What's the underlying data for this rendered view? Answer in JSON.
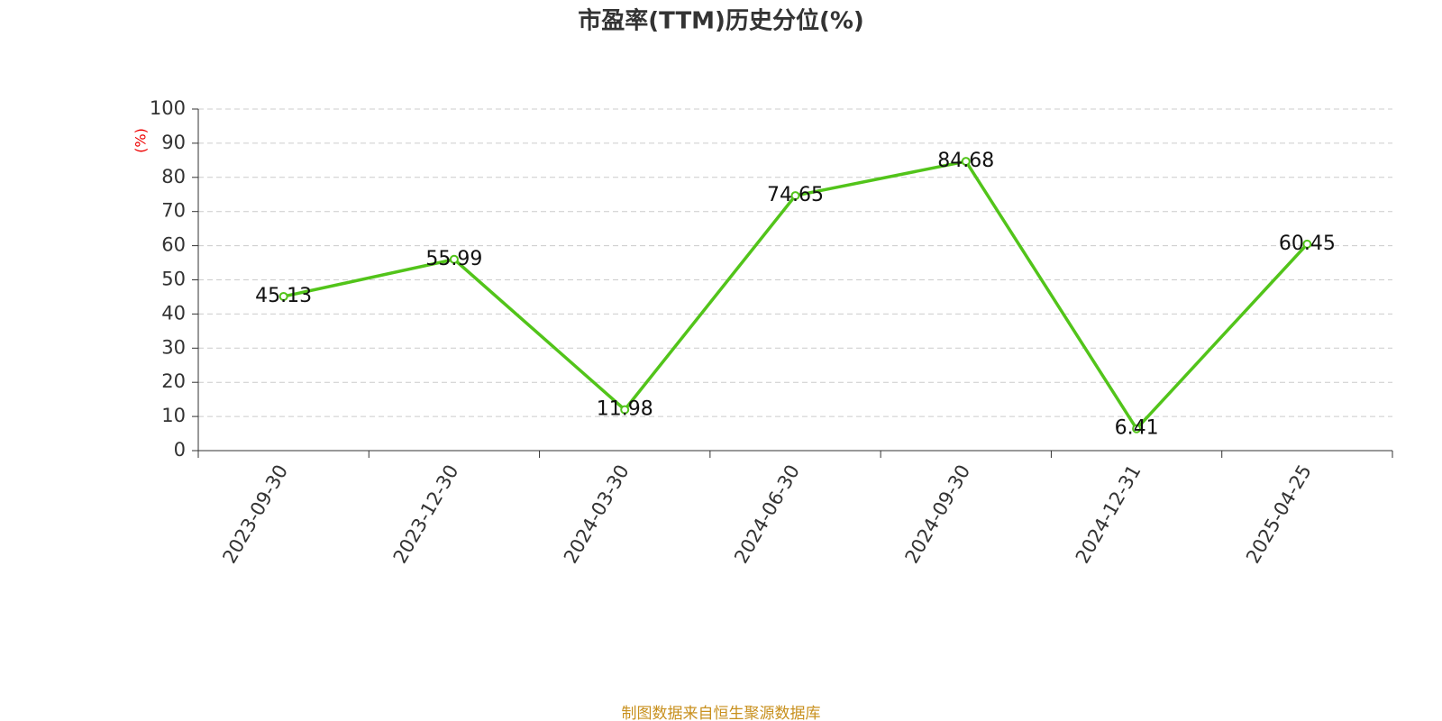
{
  "chart_data": {
    "type": "line",
    "title": "市盈率(TTM)历史分位(%)",
    "y_label": "(%)",
    "categories": [
      "2023-09-30",
      "2023-12-30",
      "2024-03-30",
      "2024-06-30",
      "2024-09-30",
      "2024-12-31",
      "2025-04-25"
    ],
    "values": [
      45.13,
      55.99,
      11.98,
      74.65,
      84.68,
      6.41,
      60.45
    ],
    "color": "#52c41a",
    "ylim": [
      0,
      100
    ],
    "yticks": [
      0,
      10,
      20,
      30,
      40,
      50,
      60,
      70,
      80,
      90,
      100
    ],
    "grid": true,
    "source": "制图数据来自恒生聚源数据库"
  }
}
